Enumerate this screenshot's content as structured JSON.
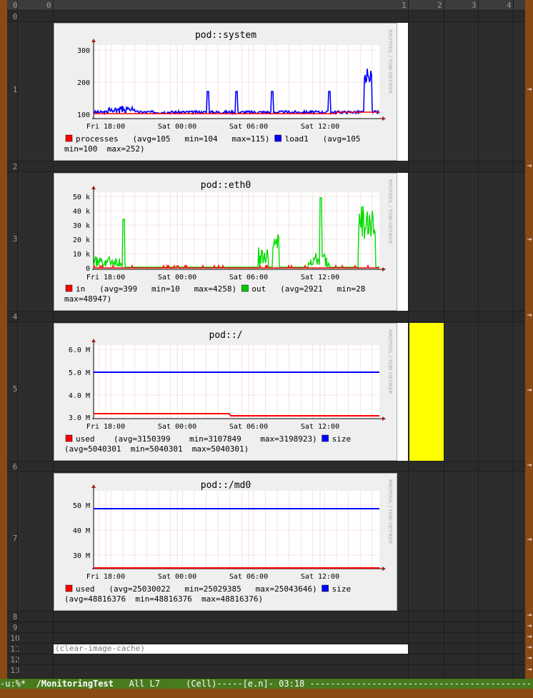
{
  "header": {
    "row_label": "0",
    "col_a": "0",
    "col_labels": [
      "1",
      "2",
      "3",
      "4"
    ]
  },
  "rows": [
    "0",
    "1",
    "2",
    "3",
    "4",
    "5",
    "6",
    "7",
    "8",
    "9",
    "10",
    "11",
    "12",
    "13"
  ],
  "charts": [
    {
      "id": "system",
      "title": "pod::system",
      "watermark": "RRDTOOL / TOBI OETIKER",
      "y_ticks": [
        "300",
        "200",
        "100"
      ],
      "x_ticks": [
        "Fri 18:00",
        "Sat 00:00",
        "Sat 06:00",
        "Sat 12:00"
      ],
      "legend_line1": [
        {
          "color": "#ff0000",
          "text": "processes   (avg=105   min=104   max=115)"
        },
        {
          "color": "#0000ff",
          "text": "load1   (avg=105"
        }
      ],
      "legend_line2": "min=100  max=252)"
    },
    {
      "id": "eth0",
      "title": "pod::eth0",
      "watermark": "RRDTOOL / TOBI OETIKER",
      "y_ticks": [
        "50 k",
        "40 k",
        "30 k",
        "20 k",
        "10 k",
        "0"
      ],
      "x_ticks": [
        "Fri 18:00",
        "Sat 00:00",
        "Sat 06:00",
        "Sat 12:00"
      ],
      "legend_line1": [
        {
          "color": "#ff0000",
          "text": "in   (avg=399   min=10   max=4258)"
        },
        {
          "color": "#00cc00",
          "text": "out   (avg=2921   min=28"
        }
      ],
      "legend_line2": "max=48947)"
    },
    {
      "id": "root",
      "title": "pod::/",
      "watermark": "RRDTOOL / TOBI OETIKER",
      "y_ticks": [
        "6.0 M",
        "5.0 M",
        "4.0 M",
        "3.0 M"
      ],
      "x_ticks": [
        "Fri 18:00",
        "Sat 00:00",
        "Sat 06:00",
        "Sat 12:00"
      ],
      "legend_line1": [
        {
          "color": "#ff0000",
          "text": "used    (avg=3150399    min=3107849    max=3198923)"
        },
        {
          "color": "#0000ff",
          "text": "size"
        }
      ],
      "legend_line2": "(avg=5040301  min=5040301  max=5040301)"
    },
    {
      "id": "md0",
      "title": "pod::/md0",
      "watermark": "RRDTOOL / TOBI OETIKER",
      "y_ticks": [
        "50 M",
        "40 M",
        "30 M"
      ],
      "x_ticks": [
        "Fri 18:00",
        "Sat 00:00",
        "Sat 06:00",
        "Sat 12:00"
      ],
      "legend_line1": [
        {
          "color": "#ff0000",
          "text": "used   (avg=25030022   min=25029385   max=25043646)"
        },
        {
          "color": "#0000ff",
          "text": "size"
        }
      ],
      "legend_line2": "(avg=48816376  min=48816376  max=48816376)"
    }
  ],
  "cell_input": "(clear-image-cache)",
  "modeline": {
    "left": "-u:%*  ",
    "buffer": "/MonitoringTest",
    "right": "   All L7     (Cell)-----[e.n]- 03:18 ------------------------------------------------"
  },
  "colors": {
    "frame": "#8a4a14",
    "modeline": "#4a7a1e",
    "highlight_cell": "#ffff00"
  }
}
